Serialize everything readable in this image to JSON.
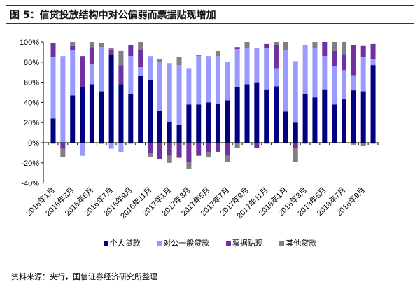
{
  "title": "图 5：信贷投放结构中对公偏弱而票据贴现增加",
  "source": "资料来源：央行，国信证券经济研究所整理",
  "chart_data": {
    "type": "bar",
    "stacked": true,
    "title": "图 5：信贷投放结构中对公偏弱而票据贴现增加",
    "ylim": [
      -40,
      100
    ],
    "yticks": [
      "-40%",
      "-20%",
      "0%",
      "20%",
      "40%",
      "60%",
      "80%",
      "100%"
    ],
    "ytick_values": [
      -40,
      -20,
      0,
      20,
      40,
      60,
      80,
      100
    ],
    "xtick_labels": [
      "2016年1月",
      "2016年3月",
      "2016年5月",
      "2016年7月",
      "2016年9月",
      "2016年11月",
      "2017年1月",
      "2017年3月",
      "2017年5月",
      "2017年7月",
      "2017年9月",
      "2017年11月",
      "2018年1月",
      "2018年3月",
      "2018年5月",
      "2018年7月",
      "2018年9月"
    ],
    "categories": [
      "2016-01",
      "2016-02",
      "2016-03",
      "2016-04",
      "2016-05",
      "2016-06",
      "2016-07",
      "2016-08",
      "2016-09",
      "2016-10",
      "2016-11",
      "2016-12",
      "2017-01",
      "2017-02",
      "2017-03",
      "2017-04",
      "2017-05",
      "2017-06",
      "2017-07",
      "2017-08",
      "2017-09",
      "2017-10",
      "2017-11",
      "2017-12",
      "2018-01",
      "2018-02",
      "2018-03",
      "2018-04",
      "2018-05",
      "2018-06",
      "2018-07",
      "2018-08",
      "2018-09",
      "2018-10"
    ],
    "series": [
      {
        "name": "个人贷款",
        "color": "#000080",
        "values": [
          24,
          0,
          47,
          55,
          58,
          51,
          87,
          58,
          48,
          66,
          62,
          32,
          21,
          18,
          38,
          38,
          40,
          39,
          42,
          55,
          58,
          60,
          53,
          56,
          31,
          20,
          48,
          45,
          53,
          38,
          43,
          52,
          51,
          77
        ]
      },
      {
        "name": "对公一般贷款",
        "color": "#9999ff",
        "values": [
          61,
          86,
          45,
          -13,
          20,
          44,
          -6,
          -9,
          38,
          9,
          24,
          48,
          58,
          59,
          36,
          48,
          46,
          47,
          38,
          38,
          36,
          34,
          41,
          18,
          61,
          61,
          49,
          49,
          33,
          38,
          29,
          15,
          34,
          6
        ]
      },
      {
        "name": "票据贴现",
        "color": "#7030a0",
        "values": [
          14,
          -6,
          4,
          31,
          17,
          -1,
          5,
          19,
          11,
          17,
          -10,
          -16,
          -13,
          -15,
          -19,
          -13,
          -9,
          -9,
          -13,
          2,
          0,
          -5,
          4,
          23,
          0,
          -5,
          0,
          0,
          14,
          15,
          16,
          30,
          11,
          15
        ]
      },
      {
        "name": "其他贷款",
        "color": "#808080",
        "values": [
          -1,
          -8,
          4,
          0,
          5,
          4,
          2,
          14,
          -1,
          8,
          -4,
          3,
          -7,
          8,
          -7,
          1,
          -5,
          5,
          -6,
          -5,
          6,
          0,
          -1,
          3,
          8,
          -14,
          -1,
          6,
          0,
          9,
          12,
          -2,
          -3,
          -1
        ]
      }
    ],
    "legend": "bottom",
    "grid": false
  }
}
